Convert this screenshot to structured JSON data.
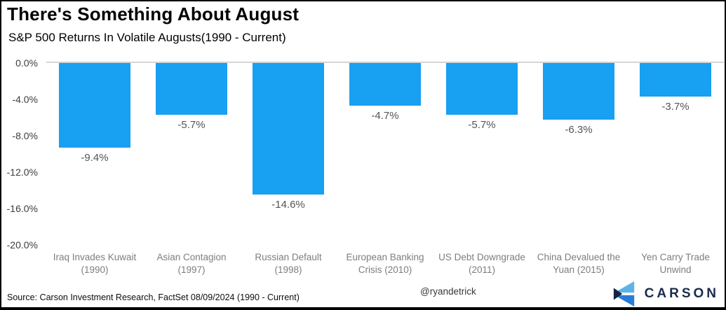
{
  "header": {
    "title": "There's Something About August",
    "subtitle": "S&P 500 Returns In Volatile Augusts(1990 - Current)"
  },
  "chart_data": {
    "type": "bar",
    "categories": [
      "Iraq Invades Kuwait (1990)",
      "Asian Contagion (1997)",
      "Russian Default (1998)",
      "European Banking Crisis (2010)",
      "US Debt Downgrade (2011)",
      "China Devalued the Yuan (2015)",
      "Yen Carry Trade Unwind"
    ],
    "values": [
      -9.4,
      -5.7,
      -14.6,
      -4.7,
      -5.7,
      -6.3,
      -3.7
    ],
    "data_labels": [
      "-9.4%",
      "-5.7%",
      "-14.6%",
      "-4.7%",
      "-5.7%",
      "-6.3%",
      "-3.7%"
    ],
    "y_ticks": [
      "0.0%",
      "-4.0%",
      "-8.0%",
      "-12.0%",
      "-16.0%",
      "-20.0%"
    ],
    "ylim": [
      -20,
      0
    ],
    "grid": false,
    "legend": "none",
    "bar_color": "#18a0f2",
    "title": "There's Something About August",
    "subtitle": "S&P 500 Returns In Volatile Augusts(1990 - Current)",
    "xlabel": "",
    "ylabel": ""
  },
  "footer": {
    "source": "Source: Carson Investment Research, FactSet 08/09/2024 (1990 - Current)",
    "handle": "@ryandetrick",
    "brand_name": "CARSON",
    "brand_colors": {
      "light_blue": "#5fb2e6",
      "mid_blue": "#2b7cd6",
      "navy": "#132440",
      "text": "#1b2b4d"
    }
  }
}
